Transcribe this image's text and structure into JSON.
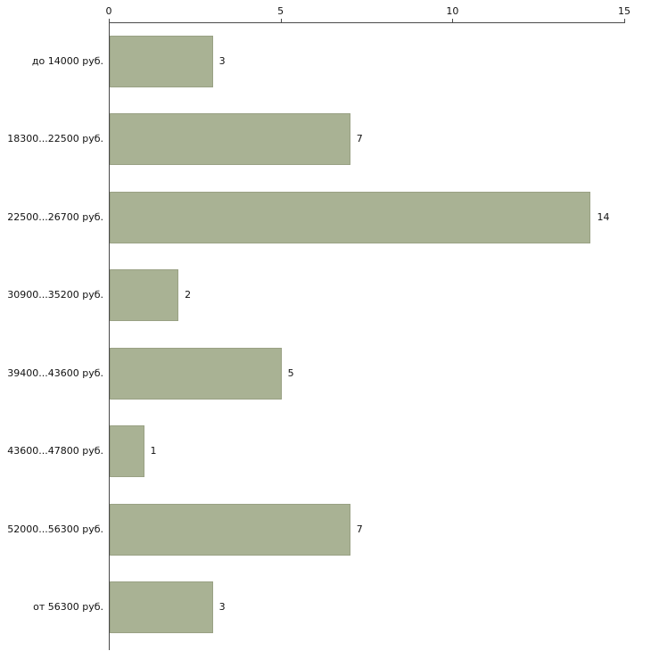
{
  "chart_data": {
    "type": "bar",
    "orientation": "horizontal",
    "title": "",
    "xlabel": "",
    "ylabel": "",
    "categories": [
      "до 14000 руб.",
      "18300...22500 руб.",
      "22500...26700 руб.",
      "30900...35200 руб.",
      "39400...43600 руб.",
      "43600...47800 руб.",
      "52000...56300 руб.",
      "от 56300 руб."
    ],
    "values": [
      3,
      7,
      14,
      2,
      5,
      1,
      7,
      3
    ],
    "xlim": [
      0,
      15
    ],
    "x_ticks": [
      0,
      5,
      10,
      15
    ],
    "grid": false,
    "legend": false,
    "bar_color": "#a9b294",
    "bar_border_color": "#99a184",
    "axis_color": "#4a4a4a",
    "text_color": "#111111",
    "background_color": "#ffffff"
  }
}
